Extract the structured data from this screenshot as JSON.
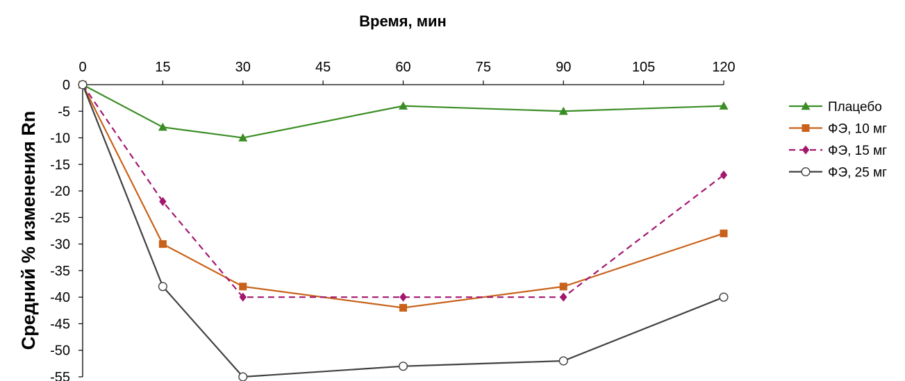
{
  "caption_cut": "",
  "chart_data": {
    "type": "line",
    "title": "",
    "xlabel": "Время, мин",
    "ylabel": "Средний % изменения Rn",
    "x_axis_position": "top",
    "xlim": [
      0,
      120
    ],
    "ylim": [
      -55,
      0
    ],
    "xticks": [
      0,
      15,
      30,
      45,
      60,
      75,
      90,
      105,
      120
    ],
    "yticks": [
      0,
      -5,
      -10,
      -15,
      -20,
      -25,
      -30,
      -35,
      -40,
      -45,
      -50,
      -55
    ],
    "grid": false,
    "legend_position": "right",
    "x": [
      0,
      15,
      30,
      60,
      90,
      120
    ],
    "series": [
      {
        "name": "Плацебо",
        "values": [
          0,
          -8,
          -10,
          -4,
          -5,
          -4
        ],
        "color": "#3a8d24",
        "marker": "triangle",
        "dash": "solid"
      },
      {
        "name": "ФЭ, 10 мг",
        "values": [
          0,
          -30,
          -38,
          -42,
          -38,
          -28
        ],
        "color": "#c8621a",
        "marker": "square",
        "dash": "solid"
      },
      {
        "name": "ФЭ, 15 мг",
        "values": [
          0,
          -22,
          -40,
          -40,
          -40,
          -17
        ],
        "color": "#a3166e",
        "marker": "diamond",
        "dash": "dashed"
      },
      {
        "name": "ФЭ, 25 мг",
        "values": [
          0,
          -38,
          -55,
          -53,
          -52,
          -40
        ],
        "color": "#404040",
        "marker": "circle-open",
        "dash": "solid"
      }
    ]
  }
}
